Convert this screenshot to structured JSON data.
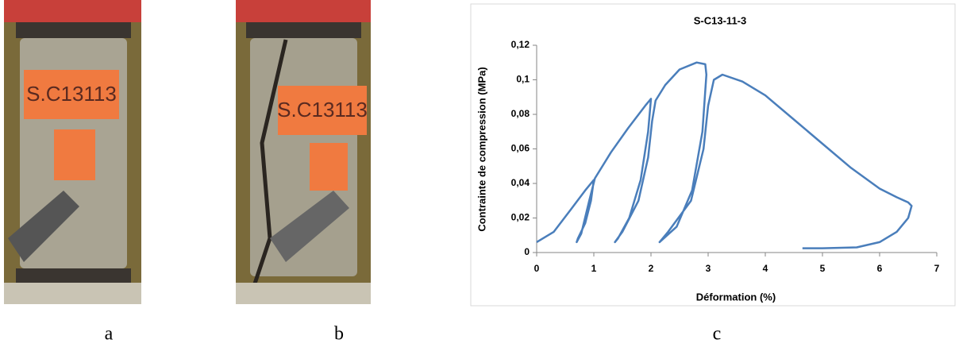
{
  "panels": [
    "a",
    "b",
    "c"
  ],
  "photo_tags": [
    "S.C13113",
    "S.C13113"
  ],
  "chart_data": {
    "type": "line",
    "title": "S-C13-11-3",
    "x_label": "Déformation (%)",
    "y_label": "Contrainte de compression (MPa)",
    "color": "#4a7ebb",
    "xlim": [
      0,
      7
    ],
    "xticks": [
      0,
      1,
      2,
      3,
      4,
      5,
      6,
      7
    ],
    "ylim": [
      0,
      0.12
    ],
    "yticks": [
      0,
      {
        "value": 0.02,
        "label": "0,02"
      },
      {
        "value": 0.04,
        "label": "0,04"
      },
      {
        "value": 0.06,
        "label": "0,06"
      },
      {
        "value": 0.08,
        "label": "0,08"
      },
      {
        "value": 0.1,
        "label": "0,1"
      },
      {
        "value": 0.12,
        "label": "0,12"
      }
    ],
    "x": [
      0,
      0.3,
      0.6,
      0.85,
      1.0,
      0.95,
      0.85,
      0.72,
      0.7,
      0.78,
      0.92,
      1.02,
      1.3,
      1.6,
      1.9,
      2.0,
      1.95,
      1.82,
      1.62,
      1.42,
      1.37,
      1.5,
      1.78,
      1.95,
      2.02,
      2.08,
      2.25,
      2.5,
      2.8,
      2.95,
      2.97,
      2.9,
      2.72,
      2.45,
      2.15,
      2.3,
      2.7,
      2.92,
      3.0,
      3.1,
      3.25,
      3.6,
      4.0,
      4.5,
      5.0,
      5.5,
      6.0,
      6.3,
      6.5,
      6.56,
      6.5,
      6.3,
      6.0,
      5.6,
      5.0,
      4.65
    ],
    "values": [
      0.006,
      0.012,
      0.025,
      0.036,
      0.042,
      0.03,
      0.017,
      0.008,
      0.006,
      0.011,
      0.03,
      0.043,
      0.058,
      0.072,
      0.085,
      0.089,
      0.07,
      0.042,
      0.02,
      0.008,
      0.006,
      0.012,
      0.03,
      0.055,
      0.076,
      0.088,
      0.097,
      0.106,
      0.11,
      0.109,
      0.103,
      0.07,
      0.036,
      0.015,
      0.006,
      0.012,
      0.03,
      0.06,
      0.085,
      0.1,
      0.103,
      0.099,
      0.091,
      0.077,
      0.063,
      0.049,
      0.037,
      0.032,
      0.029,
      0.027,
      0.02,
      0.012,
      0.006,
      0.003,
      0.0025,
      0.0025
    ]
  }
}
